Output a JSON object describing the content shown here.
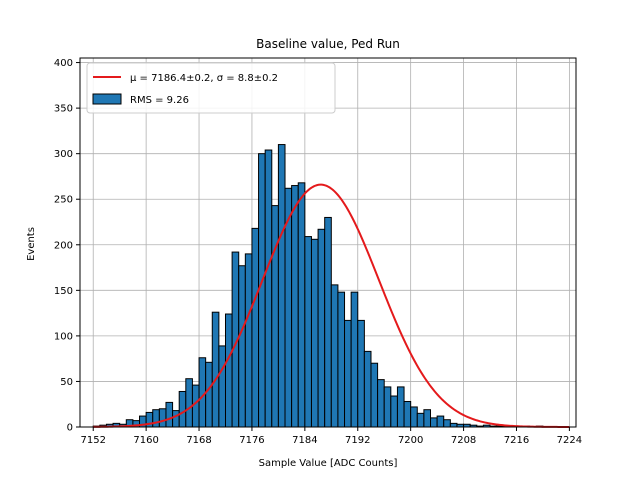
{
  "chart_data": {
    "type": "bar",
    "title": "Baseline value, Ped Run",
    "xlabel": "Sample Value [ADC Counts]",
    "ylabel": "Events",
    "xlim": [
      7150,
      7225
    ],
    "ylim": [
      0,
      405
    ],
    "xticks": [
      7152,
      7160,
      7168,
      7176,
      7184,
      7192,
      7200,
      7208,
      7216,
      7224
    ],
    "yticks": [
      0,
      50,
      100,
      150,
      200,
      250,
      300,
      350,
      400
    ],
    "grid": true,
    "legend_position": "top-left",
    "histogram": {
      "name": "RMS = 9.26",
      "color": "#1f77b4",
      "edge_color": "#000000",
      "bin_start": 7152,
      "bin_width": 1,
      "counts": [
        1,
        2,
        3,
        4,
        3,
        8,
        7,
        12,
        16,
        19,
        20,
        27,
        18,
        39,
        53,
        46,
        76,
        71,
        126,
        89,
        124,
        192,
        177,
        190,
        218,
        300,
        304,
        243,
        310,
        262,
        265,
        268,
        209,
        206,
        217,
        230,
        156,
        148,
        117,
        148,
        117,
        83,
        70,
        52,
        44,
        34,
        44,
        28,
        22,
        15,
        19,
        10,
        12,
        8,
        4,
        3,
        3,
        2,
        1,
        2,
        1,
        1,
        1,
        1,
        1,
        1,
        0,
        1,
        0,
        0,
        0,
        0
      ]
    },
    "fit": {
      "name": "μ = 7186.4±0.2, σ = 8.8±0.2",
      "type": "gaussian",
      "mu": 7186.4,
      "sigma": 8.8,
      "amplitude": 266,
      "x_range": [
        7152,
        7224
      ],
      "color": "#e41a1c"
    }
  }
}
